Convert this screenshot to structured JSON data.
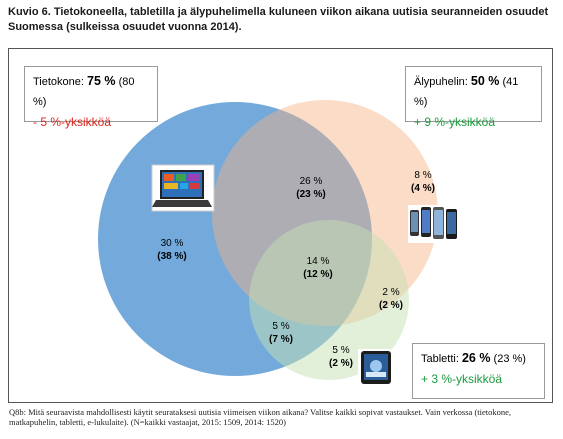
{
  "title": "Kuvio 6. Tietokoneella, tabletilla ja älypuhelimella kuluneen viikon aikana uutisia seuranneiden osuudet Suomessa (sulkeissa osuudet vuonna 2014).",
  "legend": {
    "computer": {
      "name": "Tietokone:",
      "value": "75 %",
      "old": "(80 %)",
      "delta": "- 5 %-yksikköä"
    },
    "smartphone": {
      "name": "Älypuhelin:",
      "value": "50 %",
      "old": "(41 %)",
      "delta": "+ 9 %-yksikköä"
    },
    "tablet": {
      "name": "Tabletti:",
      "value": "26 %",
      "old": "(23 %)",
      "delta": "+ 3 %-yksikköä"
    }
  },
  "regions": {
    "computer_only": {
      "value": "30 %",
      "old": "(38 %)"
    },
    "computer_smartphone": {
      "value": "26 %",
      "old": "(23 %)"
    },
    "smartphone_only": {
      "value": "8 %",
      "old": "(4 %)"
    },
    "all_three": {
      "value": "14 %",
      "old": "(12 %)"
    },
    "smartphone_tablet": {
      "value": "2 %",
      "old": "(2 %)"
    },
    "computer_tablet": {
      "value": "5 %",
      "old": "(7 %)"
    },
    "tablet_only": {
      "value": "5 %",
      "old": "(2 %)"
    }
  },
  "colors": {
    "computer": "#5b9bd5",
    "smartphone": "#f4b183",
    "tablet": "#c5e0b4",
    "delta_negative": "#e0241b",
    "delta_positive": "#1d9a3e"
  },
  "icons": {
    "computer": "laptop-icon",
    "smartphone": "smartphones-icon",
    "tablet": "tablet-icon"
  },
  "footnote": "Q8b: Mitä seuraavista mahdollisesti käytit seurataksesi uutisia viimeisen viikon aikana? Valitse kaikki sopivat vastaukset. Vain verkossa (tietokone, matkapuhelin, tabletti, e-lukulaite). (N=kaikki vastaajat, 2015: 1509, 2014: 1520)"
}
